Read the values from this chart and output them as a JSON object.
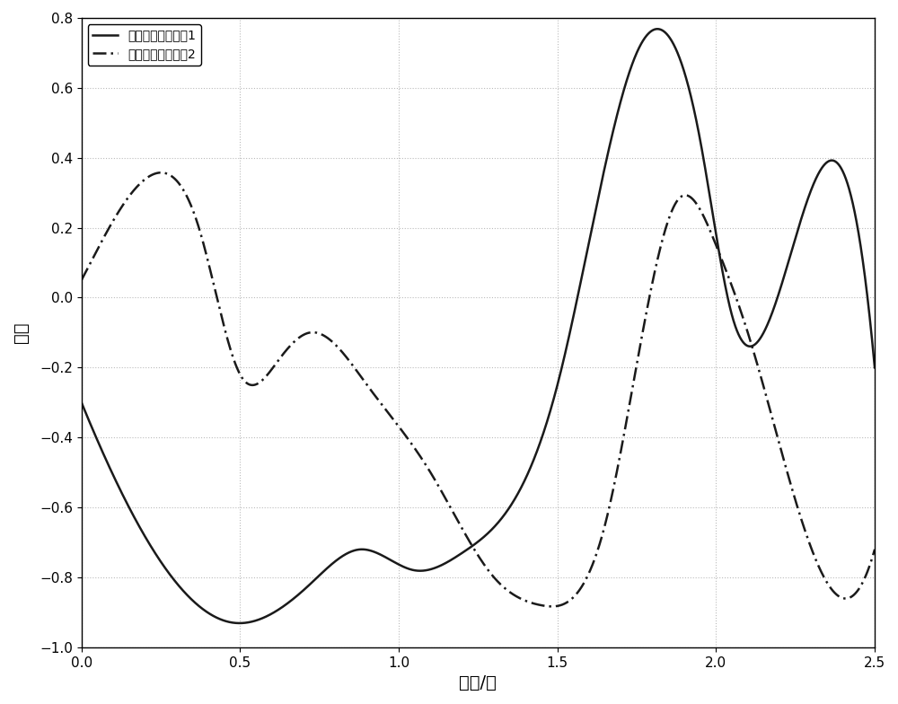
{
  "xlim": [
    0,
    2.5
  ],
  "ylim": [
    -1,
    0.8
  ],
  "xticks": [
    0,
    0.5,
    1.0,
    1.5,
    2.0,
    2.5
  ],
  "yticks": [
    -1.0,
    -0.8,
    -0.6,
    -0.4,
    -0.2,
    0,
    0.2,
    0.4,
    0.6,
    0.8
  ],
  "xlabel": "时间/秒",
  "ylabel": "幅度",
  "legend1": "波信道特性，路兴1",
  "legend2": "波信道特性，路兴2",
  "line1_color": "#1a1a1a",
  "line2_color": "#1a1a1a",
  "background_color": "#ffffff",
  "grid_color": "#bbbbbb",
  "font_size_label": 14,
  "font_size_legend": 12,
  "font_size_tick": 11,
  "linewidth": 1.8
}
